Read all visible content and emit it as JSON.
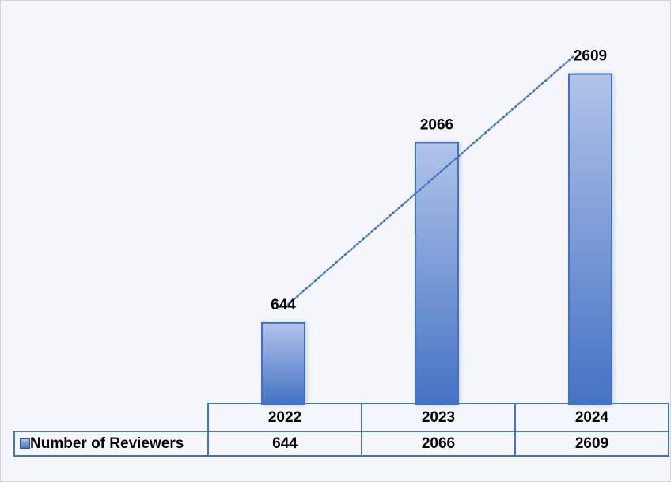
{
  "chart_data": {
    "type": "bar",
    "title": "",
    "xlabel": "",
    "ylabel": "",
    "categories": [
      "2022",
      "2023",
      "2024"
    ],
    "series": [
      {
        "name": "Number of Reviewers",
        "values": [
          644,
          2066,
          2609
        ]
      }
    ],
    "data_labels": [
      "644",
      "2066",
      "2609"
    ],
    "ylim": [
      0,
      3000
    ],
    "grid": false,
    "legend": "data-table",
    "trendline": "linear (dotted)",
    "colors": {
      "bar_top": "#b1c3e9",
      "bar_bottom": "#4472c4",
      "border": "#4472c4",
      "trendline": "#4472c4",
      "background": "#f5f7fc"
    }
  }
}
